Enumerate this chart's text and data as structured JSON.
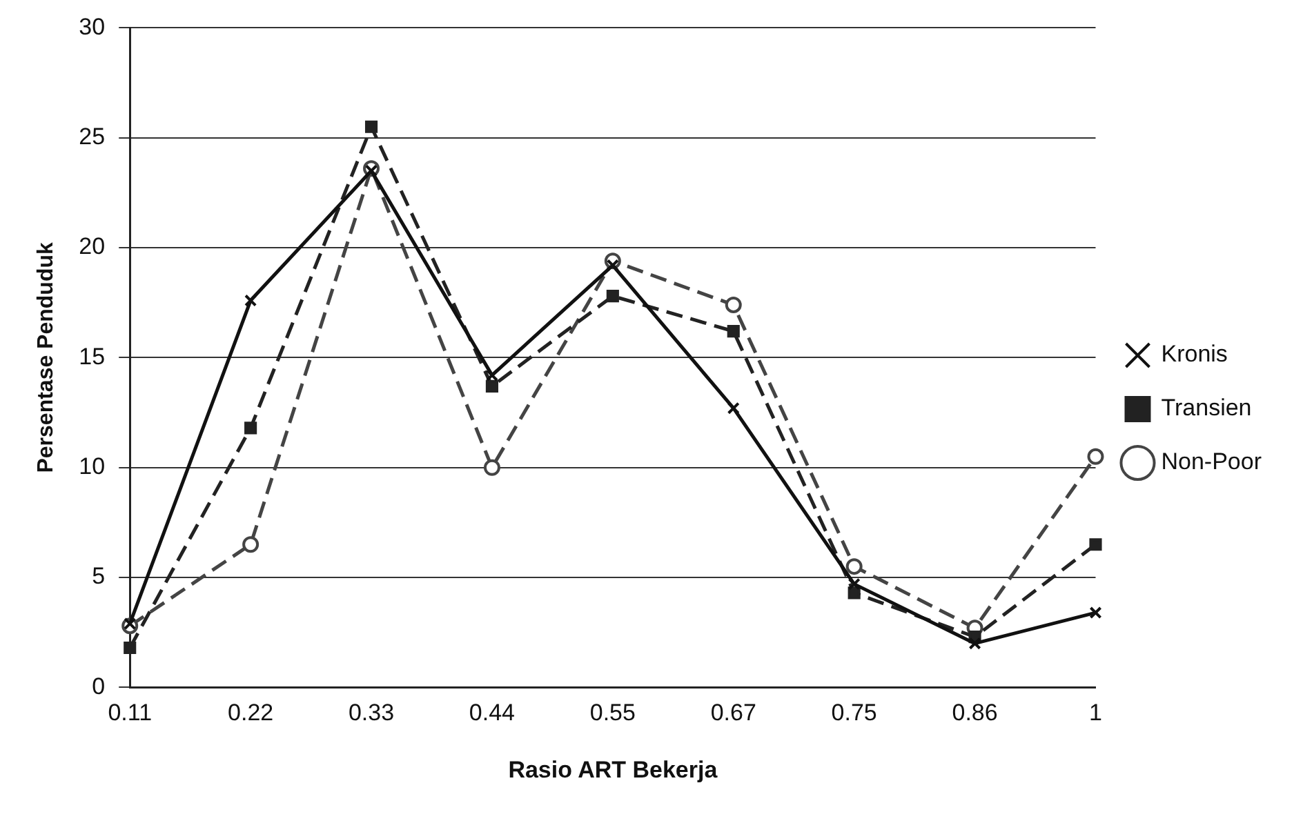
{
  "chart_data": {
    "type": "line",
    "xlabel": "Rasio ART Bekerja",
    "ylabel": "Persentase Penduduk",
    "categories": [
      "0.11",
      "0.22",
      "0.33",
      "0.44",
      "0.55",
      "0.67",
      "0.75",
      "0.86",
      "1"
    ],
    "series": [
      {
        "name": "Kronis",
        "color": "#111111",
        "marker": "cross",
        "line_style": "solid",
        "values": [
          2.9,
          17.6,
          23.5,
          14.2,
          19.2,
          12.7,
          4.7,
          2.0,
          3.4
        ]
      },
      {
        "name": "Transien",
        "color": "#222222",
        "marker": "square",
        "line_style": "dashed",
        "values": [
          1.8,
          11.8,
          25.5,
          13.7,
          17.8,
          16.2,
          4.3,
          2.3,
          6.5
        ]
      },
      {
        "name": "Non-Poor",
        "color": "#444444",
        "marker": "circle",
        "line_style": "dashed",
        "values": [
          2.8,
          6.5,
          23.6,
          10.0,
          19.4,
          17.4,
          5.5,
          2.7,
          10.5
        ]
      }
    ],
    "ylim": [
      0,
      30
    ],
    "yticks": [
      0,
      5,
      10,
      15,
      20,
      25,
      30
    ],
    "grid": "y",
    "legend": "right"
  }
}
